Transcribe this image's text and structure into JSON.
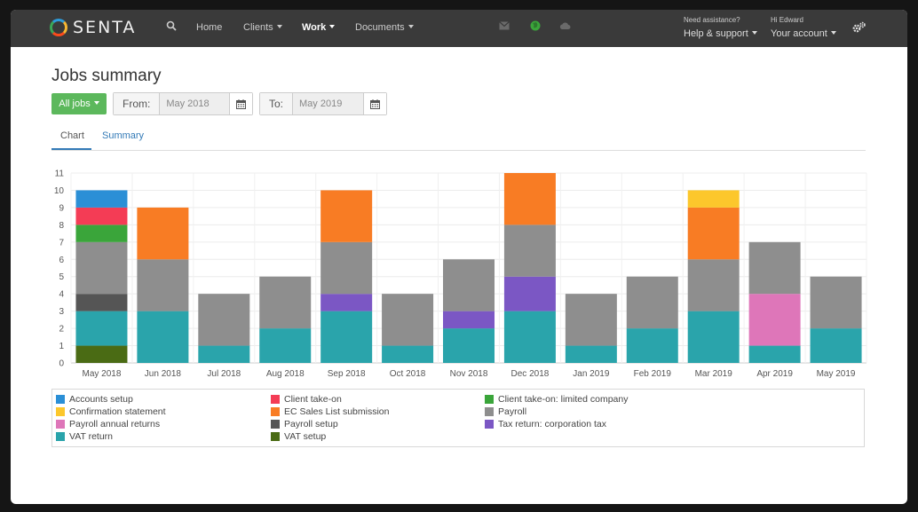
{
  "navbar": {
    "brand": "SENTA",
    "items": [
      {
        "label": "Home",
        "dropdown": false,
        "active": false
      },
      {
        "label": "Clients",
        "dropdown": true,
        "active": false
      },
      {
        "label": "Work",
        "dropdown": true,
        "active": true
      },
      {
        "label": "Documents",
        "dropdown": true,
        "active": false
      }
    ],
    "help_small": "Need assistance?",
    "help_label": "Help & support",
    "user_small": "Hi Edward",
    "user_label": "Your account",
    "icons": [
      "search-icon",
      "mail-icon",
      "globe-icon",
      "cloud-icon",
      "settings-icon"
    ]
  },
  "page": {
    "title": "Jobs summary",
    "filter_button": "All jobs",
    "from_label": "From:",
    "from_value": "May 2018",
    "to_label": "To:",
    "to_value": "May 2019"
  },
  "tabs": [
    {
      "label": "Chart",
      "active": true
    },
    {
      "label": "Summary",
      "active": false
    }
  ],
  "chart_data": {
    "type": "bar",
    "stacked": true,
    "ylim": [
      0,
      11
    ],
    "yticks": [
      0,
      1,
      2,
      3,
      4,
      5,
      6,
      7,
      8,
      9,
      10,
      11
    ],
    "grid": true,
    "categories": [
      "May 2018",
      "Jun 2018",
      "Jul 2018",
      "Aug 2018",
      "Sep 2018",
      "Oct 2018",
      "Nov 2018",
      "Dec 2018",
      "Jan 2019",
      "Feb 2019",
      "Mar 2019",
      "Apr 2019",
      "May 2019"
    ],
    "series": [
      {
        "name": "VAT setup",
        "color": "#4a6b14",
        "values": [
          1,
          0,
          0,
          0,
          0,
          0,
          0,
          0,
          0,
          0,
          0,
          0,
          0
        ]
      },
      {
        "name": "VAT return",
        "color": "#2aa4ab",
        "values": [
          2,
          3,
          1,
          2,
          3,
          1,
          2,
          3,
          1,
          2,
          3,
          1,
          2
        ]
      },
      {
        "name": "Payroll setup",
        "color": "#555555",
        "values": [
          1,
          0,
          0,
          0,
          0,
          0,
          0,
          0,
          0,
          0,
          0,
          0,
          0
        ]
      },
      {
        "name": "Tax return: corporation tax",
        "color": "#7b57c4",
        "values": [
          0,
          0,
          0,
          0,
          1,
          0,
          1,
          2,
          0,
          0,
          0,
          0,
          0
        ]
      },
      {
        "name": "Payroll annual returns",
        "color": "#de76b9",
        "values": [
          0,
          0,
          0,
          0,
          0,
          0,
          0,
          0,
          0,
          0,
          0,
          3,
          0
        ]
      },
      {
        "name": "Payroll",
        "color": "#8e8e8e",
        "values": [
          3,
          3,
          3,
          3,
          3,
          3,
          3,
          3,
          3,
          3,
          3,
          3,
          3
        ]
      },
      {
        "name": "Client take-on: limited company",
        "color": "#3aa53a",
        "values": [
          1,
          0,
          0,
          0,
          0,
          0,
          0,
          0,
          0,
          0,
          0,
          0,
          0
        ]
      },
      {
        "name": "Client take-on",
        "color": "#f43c55",
        "values": [
          1,
          0,
          0,
          0,
          0,
          0,
          0,
          0,
          0,
          0,
          0,
          0,
          0
        ]
      },
      {
        "name": "EC Sales List submission",
        "color": "#f87c24",
        "values": [
          0,
          3,
          0,
          0,
          3,
          0,
          0,
          3,
          0,
          0,
          3,
          0,
          0
        ]
      },
      {
        "name": "Confirmation statement",
        "color": "#fcc72c",
        "values": [
          0,
          0,
          0,
          0,
          0,
          0,
          0,
          0,
          0,
          0,
          1,
          0,
          0
        ]
      },
      {
        "name": "Accounts setup",
        "color": "#2b8fd6",
        "values": [
          1,
          0,
          0,
          0,
          0,
          0,
          0,
          0,
          0,
          0,
          0,
          0,
          0
        ]
      }
    ]
  },
  "legend": [
    {
      "label": "Accounts setup",
      "color": "#2b8fd6"
    },
    {
      "label": "Client take-on",
      "color": "#f43c55"
    },
    {
      "label": "Client take-on: limited company",
      "color": "#3aa53a"
    },
    {
      "label": "Confirmation statement",
      "color": "#fcc72c"
    },
    {
      "label": "EC Sales List submission",
      "color": "#f87c24"
    },
    {
      "label": "Payroll",
      "color": "#8e8e8e"
    },
    {
      "label": "Payroll annual returns",
      "color": "#de76b9"
    },
    {
      "label": "Payroll setup",
      "color": "#555555"
    },
    {
      "label": "Tax return: corporation tax",
      "color": "#7b57c4"
    },
    {
      "label": "VAT return",
      "color": "#2aa4ab"
    },
    {
      "label": "VAT setup",
      "color": "#4a6b14"
    }
  ]
}
